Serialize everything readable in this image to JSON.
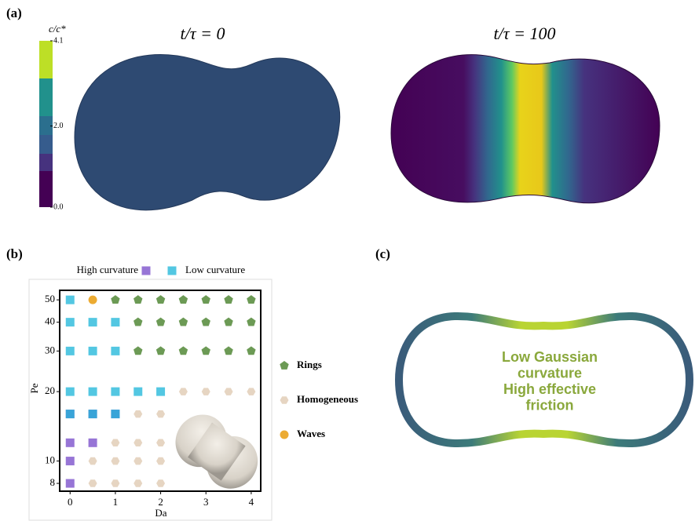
{
  "panel_a": {
    "label": "(a)",
    "left_title": "t/τ = 0",
    "right_title": "t/τ = 100",
    "colorbar": {
      "label": "c/c*",
      "lim": [
        0,
        4.1
      ],
      "ticks": [
        {
          "value": 0,
          "label": "0.0"
        },
        {
          "value": 2,
          "label": "2.0"
        },
        4.1
      ]
    }
  },
  "chart_data": {
    "type": "scatter",
    "panel_label": "(b)",
    "x_label": "Da",
    "y_label": "Pe",
    "xlim": [
      -0.23,
      4.21
    ],
    "ylim": [
      7.4,
      55
    ],
    "log_y": true,
    "xticks": [
      0,
      1,
      2,
      3,
      4
    ],
    "yticks": [
      8,
      10,
      20,
      30,
      40,
      50
    ],
    "series": [
      {
        "name": "High curvature",
        "color": "#7447c8",
        "marker": "square",
        "x": [
          0,
          0,
          0,
          0.5,
          0,
          0.5,
          1
        ],
        "y": [
          8,
          10,
          12,
          12,
          16,
          16,
          16
        ]
      },
      {
        "name": "Low curvature",
        "color": "#19b4d8",
        "marker": "square",
        "x": [
          0,
          0.5,
          1,
          0,
          0.5,
          1,
          1.5,
          2,
          0,
          0.5,
          1,
          0,
          0.5,
          1,
          0
        ],
        "y": [
          16,
          16,
          16,
          20,
          20,
          20,
          20,
          20,
          30,
          30,
          30,
          40,
          40,
          40,
          50
        ]
      },
      {
        "name": "Rings",
        "color": "#6c9a55",
        "marker": "pentagon",
        "x": [
          1,
          1.5,
          2,
          2.5,
          3,
          3.5,
          4,
          1.5,
          2,
          2.5,
          3,
          3.5,
          4,
          1.5,
          2,
          2.5,
          3,
          3.5,
          4
        ],
        "y": [
          50,
          50,
          50,
          50,
          50,
          50,
          50,
          40,
          40,
          40,
          40,
          40,
          40,
          30,
          30,
          30,
          30,
          30,
          30
        ]
      },
      {
        "name": "Homogeneous",
        "color": "#e6d5c2",
        "marker": "hexagon",
        "x": [
          0.5,
          1,
          1.5,
          2,
          0.5,
          1,
          1.5,
          2,
          1,
          1.5,
          2,
          1.5,
          2,
          2.5,
          3,
          3.5,
          4
        ],
        "y": [
          8,
          8,
          8,
          8,
          10,
          10,
          10,
          10,
          12,
          12,
          12,
          16,
          16,
          20,
          20,
          20,
          20
        ]
      },
      {
        "name": "Waves",
        "color": "#eaa21c",
        "marker": "circle",
        "x": [
          0.5
        ],
        "y": [
          50
        ]
      }
    ]
  },
  "panel_c": {
    "label": "(c)",
    "annotation": [
      "Low Gaussian",
      "curvature",
      "High effective",
      "friction"
    ]
  }
}
